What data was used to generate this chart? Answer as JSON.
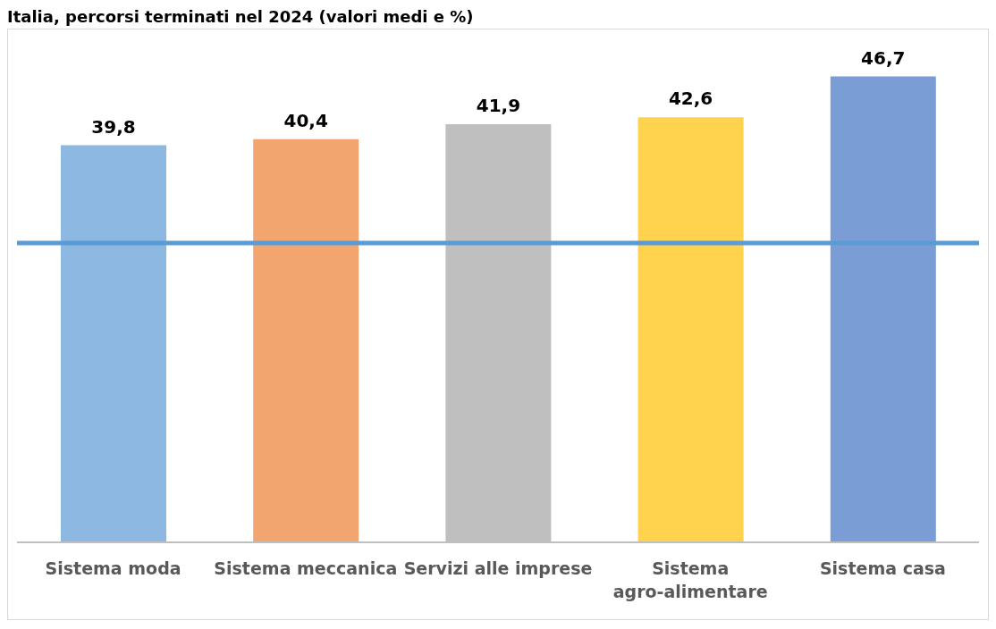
{
  "chart_data": {
    "type": "bar",
    "title": "Italia, percorsi terminati nel 2024 (valori medi e %)",
    "categories": [
      "Sistema moda",
      "Sistema meccanica",
      "Servizi alle imprese",
      "Sistema agro-alimentare",
      "Sistema casa"
    ],
    "values": [
      39.8,
      40.4,
      41.9,
      42.6,
      46.7
    ],
    "value_labels": [
      "39,8",
      "40,4",
      "41,9",
      "42,6",
      "46,7"
    ],
    "colors": [
      "#8db8e2",
      "#f2a56e",
      "#bfbfbf",
      "#ffd34d",
      "#7b9dd6"
    ],
    "tick_labels": "x",
    "ref_lines": [
      {
        "axis": "y",
        "value": 30,
        "color": "#5b9bd5"
      }
    ]
  }
}
